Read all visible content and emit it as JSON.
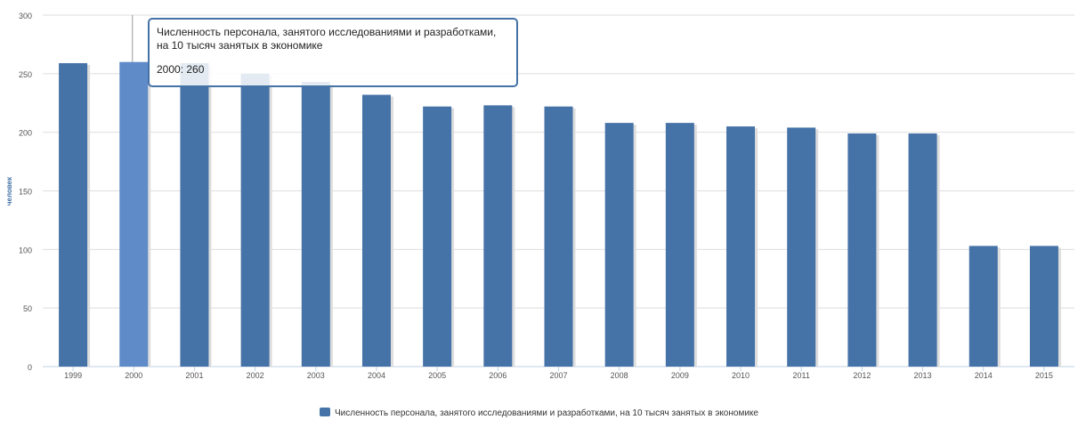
{
  "chart_data": {
    "type": "bar",
    "title": "",
    "xlabel": "",
    "ylabel": "человек",
    "ylim": [
      0,
      300
    ],
    "yticks": [
      0,
      50,
      100,
      150,
      200,
      250,
      300
    ],
    "grid": true,
    "legend_position": "bottom-center",
    "categories": [
      "1999",
      "2000",
      "2001",
      "2002",
      "2003",
      "2004",
      "2005",
      "2006",
      "2007",
      "2008",
      "2009",
      "2010",
      "2011",
      "2012",
      "2013",
      "2014",
      "2015"
    ],
    "series": [
      {
        "name": "Численность персонала, занятого исследованиями и разработками, на 10 тысяч занятых в экономике",
        "color": "#4572a7",
        "values": [
          259,
          260,
          259,
          250,
          243,
          232,
          222,
          223,
          222,
          208,
          208,
          205,
          204,
          199,
          199,
          103,
          103
        ]
      }
    ],
    "highlighted_category": "2000",
    "highlight_color": "#5f8bc8"
  },
  "tooltip": {
    "title": "Численность персонала, занятого исследованиями и разработками, на 10 тысяч занятых в экономике",
    "value_text": "2000: 260"
  },
  "legend": {
    "label": "Численность персонала, занятого исследованиями и разработками, на 10 тысяч занятых в экономике"
  }
}
